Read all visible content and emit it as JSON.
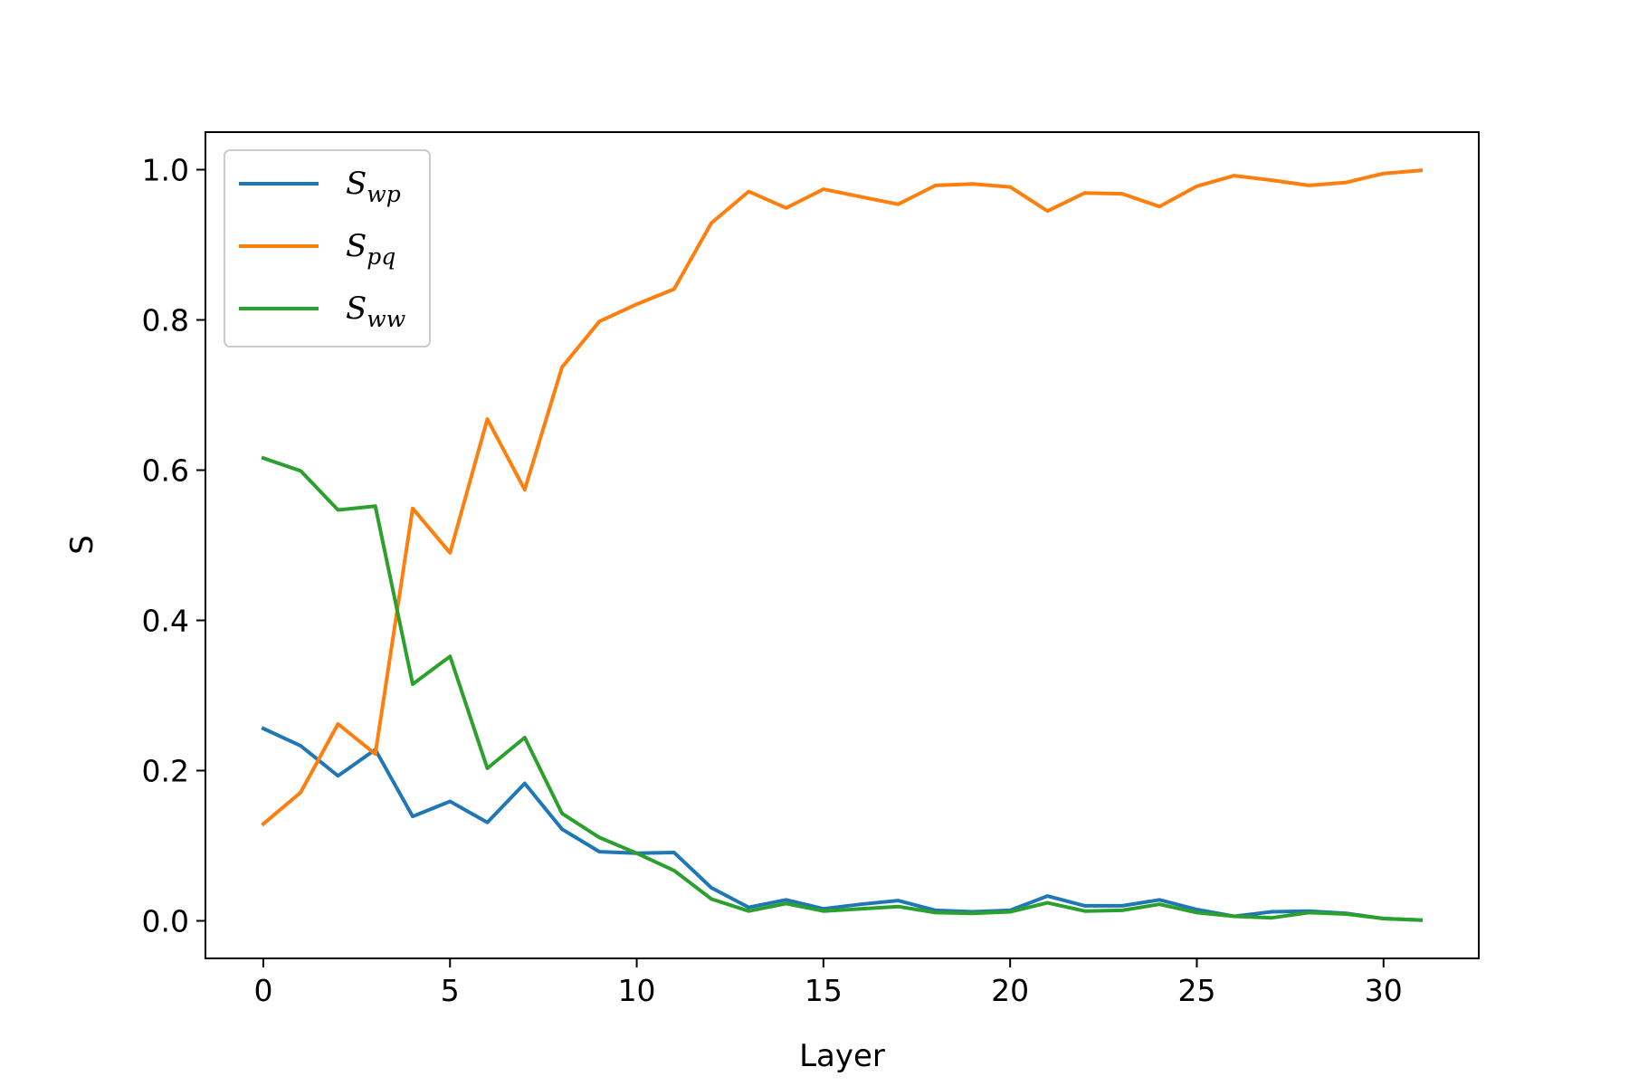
{
  "chart_data": {
    "type": "line",
    "title": "",
    "xlabel": "Layer",
    "ylabel": "S",
    "xlim": [
      -1.55,
      32.55
    ],
    "ylim": [
      -0.05,
      1.05
    ],
    "xticks": [
      0,
      5,
      10,
      15,
      20,
      25,
      30
    ],
    "xtick_labels": [
      "0",
      "5",
      "10",
      "15",
      "20",
      "25",
      "30"
    ],
    "yticks": [
      0.0,
      0.2,
      0.4,
      0.6,
      0.8,
      1.0
    ],
    "ytick_labels": [
      "0.0",
      "0.2",
      "0.4",
      "0.6",
      "0.8",
      "1.0"
    ],
    "grid": false,
    "legend_position": "top-left",
    "x": [
      0,
      1,
      2,
      3,
      4,
      5,
      6,
      7,
      8,
      9,
      10,
      11,
      12,
      13,
      14,
      15,
      16,
      17,
      18,
      19,
      20,
      21,
      22,
      23,
      24,
      25,
      26,
      27,
      28,
      29,
      30,
      31
    ],
    "series": [
      {
        "name": "S",
        "subscript": "wp",
        "color": "#1f77b4",
        "values": [
          0.256,
          0.233,
          0.193,
          0.228,
          0.139,
          0.159,
          0.131,
          0.183,
          0.122,
          0.092,
          0.09,
          0.091,
          0.044,
          0.018,
          0.028,
          0.016,
          0.022,
          0.027,
          0.014,
          0.012,
          0.014,
          0.033,
          0.02,
          0.02,
          0.028,
          0.015,
          0.006,
          0.012,
          0.013,
          0.01,
          0.003,
          0.001
        ]
      },
      {
        "name": "S",
        "subscript": "pq",
        "color": "#ff7f0e",
        "values": [
          0.129,
          0.171,
          0.262,
          0.222,
          0.549,
          0.49,
          0.668,
          0.574,
          0.737,
          0.798,
          0.821,
          0.841,
          0.929,
          0.971,
          0.949,
          0.974,
          0.964,
          0.954,
          0.979,
          0.981,
          0.977,
          0.945,
          0.969,
          0.968,
          0.951,
          0.978,
          0.992,
          0.986,
          0.979,
          0.983,
          0.995,
          0.999
        ]
      },
      {
        "name": "S",
        "subscript": "ww",
        "color": "#2ca02c",
        "values": [
          0.616,
          0.599,
          0.547,
          0.552,
          0.315,
          0.352,
          0.203,
          0.244,
          0.143,
          0.111,
          0.09,
          0.067,
          0.029,
          0.013,
          0.023,
          0.013,
          0.016,
          0.019,
          0.011,
          0.01,
          0.012,
          0.024,
          0.013,
          0.014,
          0.022,
          0.011,
          0.006,
          0.004,
          0.011,
          0.009,
          0.003,
          0.001
        ]
      }
    ]
  }
}
